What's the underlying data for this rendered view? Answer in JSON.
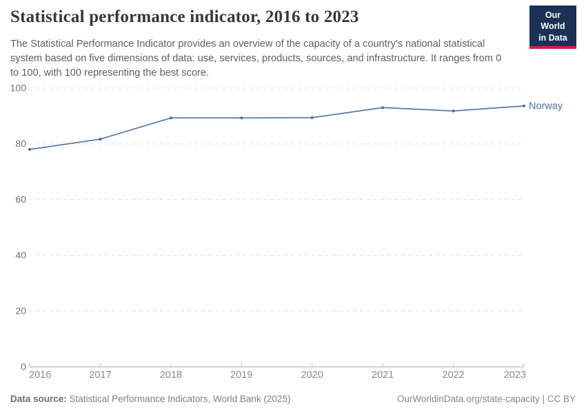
{
  "header": {
    "title": "Statistical performance indicator, 2016 to 2023",
    "subtitle": "The Statistical Performance Indicator provides an overview of the capacity of a country's national statistical system based on five dimensions of data: use, services, products, sources, and infrastructure. It ranges from 0 to 100, with 100 representing the best score.",
    "logo_line1": "Our World",
    "logo_line2": "in Data"
  },
  "chart_data": {
    "type": "line",
    "title": "Statistical performance indicator, 2016 to 2023",
    "x": [
      2016,
      2017,
      2018,
      2019,
      2020,
      2021,
      2022,
      2023
    ],
    "series": [
      {
        "name": "Norway",
        "color": "#4c6da8",
        "values": [
          78.0,
          81.7,
          89.3,
          89.3,
          89.4,
          93.0,
          91.8,
          93.6
        ]
      }
    ],
    "xlabel": "",
    "ylabel": "",
    "ylim": [
      0,
      100
    ],
    "yticks": [
      0,
      20,
      40,
      60,
      80,
      100
    ],
    "grid": true,
    "legend_position": "end-of-line"
  },
  "footer": {
    "datasource_label": "Data source:",
    "datasource_text": "Statistical Performance Indicators, World Bank (2025)",
    "credit": "OurWorldinData.org/state-capacity | CC BY"
  },
  "colors": {
    "line": "#4c6da8",
    "logo_bg": "#1b3156",
    "logo_red": "#d0223a",
    "gridline": "#dcdcdc",
    "axis_line": "#a9a9a9",
    "tick_mark": "#bcbcbc",
    "y_label": "#737373",
    "x_label": "#8a8a8a",
    "title_text": "#373737",
    "subtitle_text": "#5b5e62",
    "footer_text": "#7e7e7e"
  }
}
